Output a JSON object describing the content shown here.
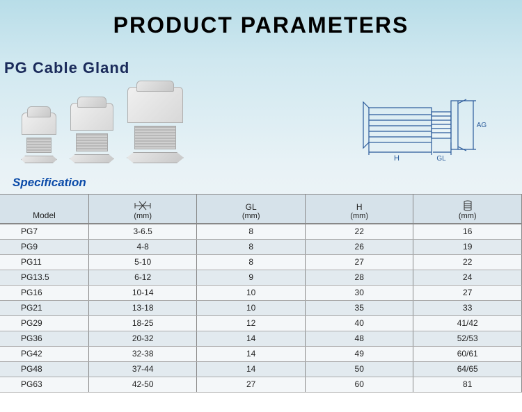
{
  "title": "PRODUCT PARAMETERS",
  "subtitle": "PG Cable Gland",
  "specification_label": "Specification",
  "diagram_labels": {
    "h": "H",
    "gl": "GL",
    "ag": "AG"
  },
  "table": {
    "headers": {
      "model": "Model",
      "cable_range_unit": "(mm)",
      "gl": "GL",
      "gl_unit": "(mm)",
      "h": "H",
      "h_unit": "(mm)",
      "thread_unit": "(mm)"
    },
    "rows": [
      {
        "model": "PG7",
        "range": "3-6.5",
        "gl": "8",
        "h": "22",
        "thread": "16"
      },
      {
        "model": "PG9",
        "range": "4-8",
        "gl": "8",
        "h": "26",
        "thread": "19"
      },
      {
        "model": "PG11",
        "range": "5-10",
        "gl": "8",
        "h": "27",
        "thread": "22"
      },
      {
        "model": "PG13.5",
        "range": "6-12",
        "gl": "9",
        "h": "28",
        "thread": "24"
      },
      {
        "model": "PG16",
        "range": "10-14",
        "gl": "10",
        "h": "30",
        "thread": "27"
      },
      {
        "model": "PG21",
        "range": "13-18",
        "gl": "10",
        "h": "35",
        "thread": "33"
      },
      {
        "model": "PG29",
        "range": "18-25",
        "gl": "12",
        "h": "40",
        "thread": "41/42"
      },
      {
        "model": "PG36",
        "range": "20-32",
        "gl": "14",
        "h": "48",
        "thread": "52/53"
      },
      {
        "model": "PG42",
        "range": "32-38",
        "gl": "14",
        "h": "49",
        "thread": "60/61"
      },
      {
        "model": "PG48",
        "range": "37-44",
        "gl": "14",
        "h": "50",
        "thread": "64/65"
      },
      {
        "model": "PG63",
        "range": "42-50",
        "gl": "27",
        "h": "60",
        "thread": "81"
      }
    ]
  },
  "colors": {
    "title": "#000000",
    "subtitle": "#1a2a5a",
    "spec_label": "#0a4aa8",
    "diagram_stroke": "#2a5a9a",
    "table_border": "#888888",
    "header_bg": "#d6e2ea",
    "row_even_bg": "#e2eaef",
    "row_odd_bg": "#f4f7f9"
  }
}
